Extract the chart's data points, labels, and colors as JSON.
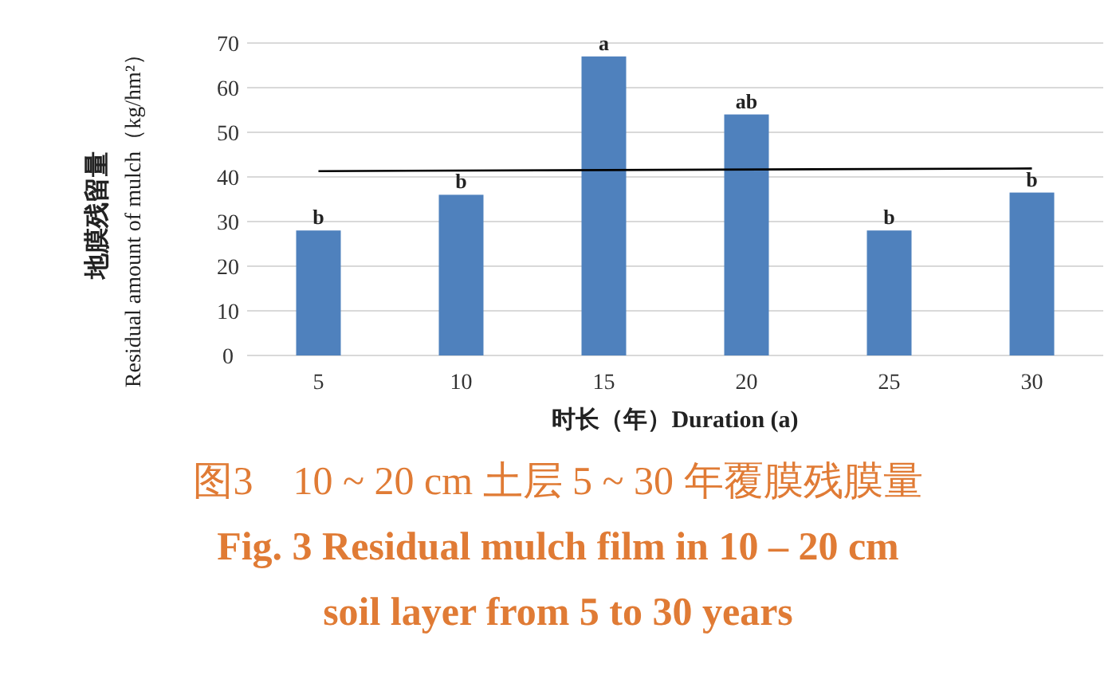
{
  "chart_data": {
    "type": "bar",
    "title": "图3　10 ~ 20 cm 土层 5 ~ 30 年覆膜残膜量",
    "subtitle": "Fig. 3 Residual mulch film in 10 – 20 cm soil layer from 5 to 30 years",
    "xlabel": "时长（年）Duration (a)",
    "ylabel": "地膜残留量\nResidual amount of mulch（kg/hm²）",
    "categories": [
      "5",
      "10",
      "15",
      "20",
      "25",
      "30"
    ],
    "series": [
      {
        "color": "#4f81bd",
        "values": [
          28,
          36,
          67,
          54,
          28,
          36.5
        ]
      },
      {
        "type": "line",
        "color": "#000000",
        "x": [
          "5",
          "30"
        ],
        "values": [
          41.3,
          41.9
        ]
      }
    ],
    "ylim": [
      0,
      70
    ],
    "yticks": [
      0,
      10,
      20,
      30,
      40,
      50,
      60,
      70
    ],
    "grid": "y",
    "annotations": [
      {
        "text": "b",
        "x": "5",
        "y": 28
      },
      {
        "text": "b",
        "x": "10",
        "y": 36
      },
      {
        "text": "a",
        "x": "15",
        "y": 67
      },
      {
        "text": "ab",
        "x": "20",
        "y": 54
      },
      {
        "text": "b",
        "x": "25",
        "y": 28
      },
      {
        "text": "b",
        "x": "30",
        "y": 36.5
      }
    ]
  }
}
